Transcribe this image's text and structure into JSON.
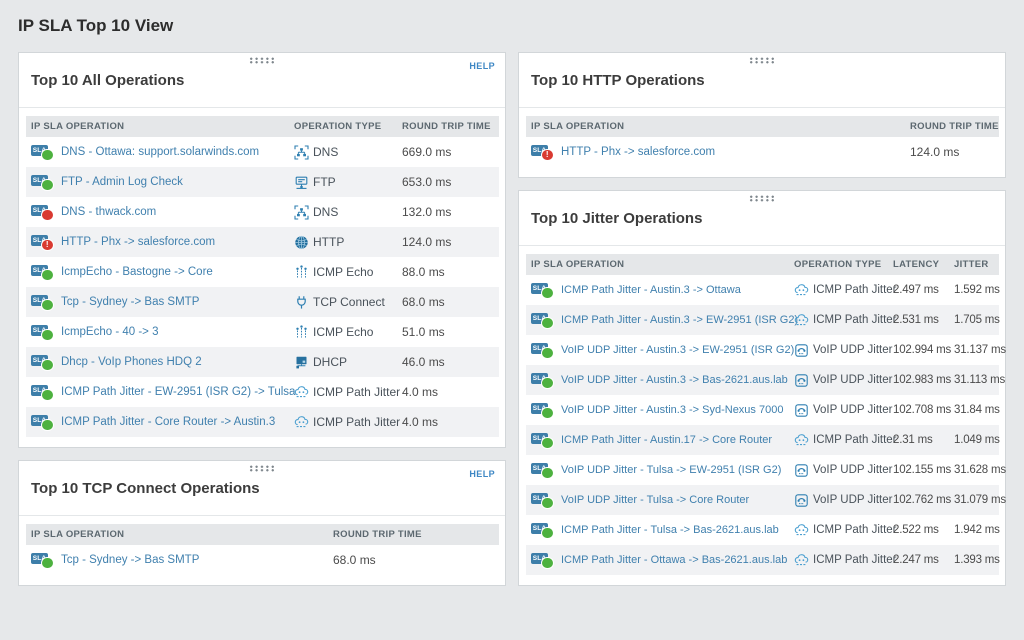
{
  "page": {
    "title": "IP SLA Top 10 View"
  },
  "sla_badge_label": "SLA",
  "status_glyphs": {
    "warning": "!"
  },
  "colors": {
    "link": "#4080ae",
    "up": "#4db13f",
    "down": "#d93a31",
    "accent_blue": "#2e7fb1",
    "page_bg": "#e6e8ea"
  },
  "panels": {
    "all_operations": {
      "title": "Top 10 All Operations",
      "help_label": "HELP",
      "columns": [
        "IP SLA OPERATION",
        "OPERATION TYPE",
        "ROUND TRIP TIME"
      ],
      "rows": [
        {
          "name": "DNS - Ottawa: support.solarwinds.com",
          "status": "up",
          "type": "DNS",
          "icon": "dns-icon",
          "rtt": "669.0 ms"
        },
        {
          "name": "FTP - Admin Log Check",
          "status": "up",
          "type": "FTP",
          "icon": "ftp-icon",
          "rtt": "653.0 ms"
        },
        {
          "name": "DNS - thwack.com",
          "status": "down",
          "type": "DNS",
          "icon": "dns-icon",
          "rtt": "132.0 ms"
        },
        {
          "name": "HTTP - Phx -> salesforce.com",
          "status": "warning",
          "type": "HTTP",
          "icon": "http-icon",
          "rtt": "124.0 ms"
        },
        {
          "name": "IcmpEcho - Bastogne -> Core",
          "status": "up",
          "type": "ICMP Echo",
          "icon": "icmp-echo-icon",
          "rtt": "88.0 ms"
        },
        {
          "name": "Tcp - Sydney -> Bas SMTP",
          "status": "up",
          "type": "TCP Connect",
          "icon": "tcp-connect-icon",
          "rtt": "68.0 ms"
        },
        {
          "name": "IcmpEcho - 40 -> 3",
          "status": "up",
          "type": "ICMP Echo",
          "icon": "icmp-echo-icon",
          "rtt": "51.0 ms"
        },
        {
          "name": "Dhcp - VoIp Phones HDQ 2",
          "status": "up",
          "type": "DHCP",
          "icon": "dhcp-icon",
          "rtt": "46.0 ms"
        },
        {
          "name": "ICMP Path Jitter - EW-2951 (ISR G2) -> Tulsa",
          "status": "up",
          "type": "ICMP Path Jitter",
          "icon": "icmp-path-jitter-icon",
          "rtt": "4.0 ms"
        },
        {
          "name": "ICMP Path Jitter - Core Router -> Austin.3",
          "status": "up",
          "type": "ICMP Path Jitter",
          "icon": "icmp-path-jitter-icon",
          "rtt": "4.0 ms"
        }
      ]
    },
    "tcp_connect_operations": {
      "title": "Top 10 TCP Connect Operations",
      "help_label": "HELP",
      "columns": [
        "IP SLA OPERATION",
        "ROUND TRIP TIME"
      ],
      "rows": [
        {
          "name": "Tcp - Sydney -> Bas SMTP",
          "status": "up",
          "rtt": "68.0 ms"
        }
      ]
    },
    "http_operations": {
      "title": "Top 10 HTTP Operations",
      "columns": [
        "IP SLA OPERATION",
        "ROUND TRIP TIME"
      ],
      "rows": [
        {
          "name": "HTTP - Phx -> salesforce.com",
          "status": "warning",
          "rtt": "124.0 ms"
        }
      ]
    },
    "jitter_operations": {
      "title": "Top 10 Jitter Operations",
      "columns": [
        "IP SLA OPERATION",
        "OPERATION TYPE",
        "LATENCY",
        "JITTER"
      ],
      "rows": [
        {
          "name": "ICMP Path Jitter - Austin.3 -> Ottawa",
          "status": "up",
          "type": "ICMP Path Jitter",
          "icon": "icmp-path-jitter-icon",
          "latency": "2.497 ms",
          "jitter": "1.592 ms"
        },
        {
          "name": "ICMP Path Jitter - Austin.3 -> EW-2951 (ISR G2)",
          "status": "up",
          "type": "ICMP Path Jitter",
          "icon": "icmp-path-jitter-icon",
          "latency": "2.531 ms",
          "jitter": "1.705 ms"
        },
        {
          "name": "VoIP UDP Jitter - Austin.3 -> EW-2951 (ISR G2)",
          "status": "up",
          "type": "VoIP UDP Jitter",
          "icon": "voip-udp-jitter-icon",
          "latency": "102.994 ms",
          "jitter": "31.137 ms"
        },
        {
          "name": "VoIP UDP Jitter - Austin.3 -> Bas-2621.aus.lab",
          "status": "up",
          "type": "VoIP UDP Jitter",
          "icon": "voip-udp-jitter-icon",
          "latency": "102.983 ms",
          "jitter": "31.113 ms"
        },
        {
          "name": "VoIP UDP Jitter - Austin.3 -> Syd-Nexus 7000",
          "status": "up",
          "type": "VoIP UDP Jitter",
          "icon": "voip-udp-jitter-icon",
          "latency": "102.708 ms",
          "jitter": "31.84 ms"
        },
        {
          "name": "ICMP Path Jitter - Austin.17 -> Core Router",
          "status": "up",
          "type": "ICMP Path Jitter",
          "icon": "icmp-path-jitter-icon",
          "latency": "2.31 ms",
          "jitter": "1.049 ms"
        },
        {
          "name": "VoIP UDP Jitter - Tulsa -> EW-2951 (ISR G2)",
          "status": "up",
          "type": "VoIP UDP Jitter",
          "icon": "voip-udp-jitter-icon",
          "latency": "102.155 ms",
          "jitter": "31.628 ms"
        },
        {
          "name": "VoIP UDP Jitter - Tulsa -> Core Router",
          "status": "up",
          "type": "VoIP UDP Jitter",
          "icon": "voip-udp-jitter-icon",
          "latency": "102.762 ms",
          "jitter": "31.079 ms"
        },
        {
          "name": "ICMP Path Jitter - Tulsa -> Bas-2621.aus.lab",
          "status": "up",
          "type": "ICMP Path Jitter",
          "icon": "icmp-path-jitter-icon",
          "latency": "2.522 ms",
          "jitter": "1.942 ms"
        },
        {
          "name": "ICMP Path Jitter - Ottawa -> Bas-2621.aus.lab",
          "status": "up",
          "type": "ICMP Path Jitter",
          "icon": "icmp-path-jitter-icon",
          "latency": "2.247 ms",
          "jitter": "1.393 ms"
        }
      ]
    }
  }
}
